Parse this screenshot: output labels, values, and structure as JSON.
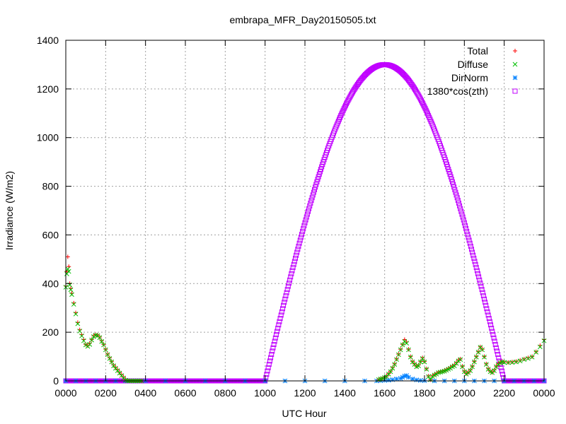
{
  "chart_data": {
    "type": "scatter",
    "title": "embrapa_MFR_Day20150505.txt",
    "xlabel": "UTC Hour",
    "ylabel": "Irradiance (W/m2)",
    "xlim": [
      0,
      24
    ],
    "ylim": [
      0,
      1400
    ],
    "grid": true,
    "legend_position": "top-right",
    "x_ticks": [
      {
        "v": 0,
        "label": "0000"
      },
      {
        "v": 2,
        "label": "0200"
      },
      {
        "v": 4,
        "label": "0400"
      },
      {
        "v": 6,
        "label": "0600"
      },
      {
        "v": 8,
        "label": "0800"
      },
      {
        "v": 10,
        "label": "1000"
      },
      {
        "v": 12,
        "label": "1200"
      },
      {
        "v": 14,
        "label": "1400"
      },
      {
        "v": 16,
        "label": "1600"
      },
      {
        "v": 18,
        "label": "1800"
      },
      {
        "v": 20,
        "label": "2000"
      },
      {
        "v": 22,
        "label": "2200"
      },
      {
        "v": 24,
        "label": "0000"
      }
    ],
    "y_ticks": [
      {
        "v": 0,
        "label": "0"
      },
      {
        "v": 200,
        "label": "200"
      },
      {
        "v": 400,
        "label": "400"
      },
      {
        "v": 600,
        "label": "600"
      },
      {
        "v": 800,
        "label": "800"
      },
      {
        "v": 1000,
        "label": "1000"
      },
      {
        "v": 1200,
        "label": "1200"
      },
      {
        "v": 1400,
        "label": "1400"
      }
    ],
    "series": [
      {
        "name": "Total",
        "marker": "plus",
        "color": "#ff0000",
        "x": [
          0,
          0.05,
          0.1,
          0.15,
          0.2,
          0.25,
          0.3,
          0.4,
          0.5,
          0.6,
          0.7,
          0.8,
          0.9,
          1.0,
          1.1,
          1.2,
          1.3,
          1.4,
          1.5,
          1.6,
          1.7,
          1.8,
          1.9,
          2.0,
          2.1,
          2.2,
          2.3,
          2.4,
          2.5,
          2.6,
          2.7,
          2.8,
          2.9,
          3.0,
          3.1,
          3.2,
          3.3,
          3.4,
          3.5,
          3.6,
          3.7,
          3.8,
          15.7,
          15.8,
          15.9,
          16.0,
          16.1,
          16.2,
          16.3,
          16.4,
          16.5,
          16.6,
          16.7,
          16.8,
          16.9,
          17.0,
          17.1,
          17.2,
          17.3,
          17.4,
          17.5,
          17.6,
          17.7,
          17.8,
          17.9,
          18.0,
          18.1,
          18.2,
          18.3,
          18.4,
          18.5,
          18.6,
          18.7,
          18.8,
          18.9,
          19.0,
          19.1,
          19.2,
          19.3,
          19.4,
          19.5,
          19.6,
          19.7,
          19.8,
          19.9,
          20.0,
          20.1,
          20.2,
          20.3,
          20.4,
          20.5,
          20.6,
          20.7,
          20.8,
          20.9,
          21.0,
          21.1,
          21.2,
          21.3,
          21.4,
          21.5,
          21.6,
          21.7,
          21.8,
          21.9,
          22.0,
          22.2,
          22.4,
          22.6,
          22.8,
          23.0,
          23.2,
          23.4,
          23.6,
          23.8,
          24.0
        ],
        "y": [
          390,
          450,
          510,
          470,
          400,
          380,
          360,
          320,
          280,
          240,
          210,
          190,
          170,
          150,
          145,
          155,
          170,
          185,
          190,
          188,
          180,
          165,
          150,
          130,
          110,
          95,
          80,
          65,
          55,
          45,
          35,
          25,
          15,
          5,
          0,
          0,
          0,
          0,
          0,
          0,
          0,
          0,
          5,
          8,
          10,
          15,
          20,
          30,
          40,
          55,
          70,
          90,
          110,
          130,
          150,
          170,
          160,
          130,
          100,
          80,
          70,
          60,
          65,
          80,
          95,
          80,
          50,
          20,
          5,
          20,
          25,
          30,
          35,
          38,
          40,
          42,
          45,
          50,
          55,
          60,
          65,
          75,
          85,
          90,
          60,
          40,
          30,
          35,
          45,
          60,
          80,
          100,
          120,
          140,
          130,
          100,
          70,
          50,
          40,
          35,
          45,
          60,
          70,
          75,
          80,
          78,
          76,
          78,
          80,
          85,
          90,
          95,
          100,
          120,
          145,
          170
        ]
      },
      {
        "name": "Diffuse",
        "marker": "cross",
        "color": "#00c000",
        "x": [
          0,
          0.05,
          0.1,
          0.15,
          0.2,
          0.25,
          0.3,
          0.4,
          0.5,
          0.6,
          0.7,
          0.8,
          0.9,
          1.0,
          1.1,
          1.2,
          1.3,
          1.4,
          1.5,
          1.6,
          1.7,
          1.8,
          1.9,
          2.0,
          2.1,
          2.2,
          2.3,
          2.4,
          2.5,
          2.6,
          2.7,
          2.8,
          2.9,
          3.0,
          3.1,
          3.2,
          3.3,
          3.4,
          3.5,
          3.6,
          3.7,
          3.8,
          15.7,
          15.8,
          15.9,
          16.0,
          16.1,
          16.2,
          16.3,
          16.4,
          16.5,
          16.6,
          16.7,
          16.8,
          16.9,
          17.0,
          17.1,
          17.2,
          17.3,
          17.4,
          17.5,
          17.6,
          17.7,
          17.8,
          17.9,
          18.0,
          18.1,
          18.2,
          18.3,
          18.4,
          18.5,
          18.6,
          18.7,
          18.8,
          18.9,
          19.0,
          19.1,
          19.2,
          19.3,
          19.4,
          19.5,
          19.6,
          19.7,
          19.8,
          19.9,
          20.0,
          20.1,
          20.2,
          20.3,
          20.4,
          20.5,
          20.6,
          20.7,
          20.8,
          20.9,
          21.0,
          21.1,
          21.2,
          21.3,
          21.4,
          21.5,
          21.6,
          21.7,
          21.8,
          21.9,
          22.0,
          22.2,
          22.4,
          22.6,
          22.8,
          23.0,
          23.2,
          23.4,
          23.6,
          23.8,
          24.0
        ],
        "y": [
          385,
          440,
          460,
          450,
          395,
          375,
          355,
          315,
          275,
          235,
          205,
          185,
          165,
          148,
          142,
          150,
          168,
          182,
          188,
          186,
          178,
          162,
          148,
          128,
          108,
          92,
          78,
          62,
          52,
          42,
          32,
          22,
          12,
          3,
          0,
          0,
          0,
          0,
          0,
          0,
          0,
          0,
          5,
          8,
          10,
          14,
          18,
          28,
          38,
          52,
          68,
          88,
          108,
          128,
          148,
          162,
          155,
          128,
          98,
          78,
          68,
          58,
          62,
          78,
          92,
          78,
          48,
          18,
          5,
          18,
          24,
          28,
          34,
          36,
          38,
          40,
          44,
          48,
          52,
          58,
          62,
          72,
          82,
          88,
          58,
          38,
          28,
          34,
          42,
          58,
          78,
          98,
          118,
          138,
          128,
          98,
          68,
          48,
          38,
          34,
          42,
          58,
          68,
          74,
          78,
          76,
          75,
          76,
          78,
          82,
          88,
          92,
          98,
          118,
          140,
          165
        ]
      },
      {
        "name": "DirNorm",
        "marker": "star",
        "color": "#0080ff",
        "x": [
          0,
          0.5,
          1,
          1.5,
          2,
          2.5,
          3,
          3.5,
          4,
          5,
          6,
          7,
          8,
          9,
          10,
          11,
          12,
          13,
          14,
          15,
          15.6,
          15.8,
          16.0,
          16.2,
          16.4,
          16.6,
          16.8,
          16.9,
          17.0,
          17.1,
          17.2,
          17.4,
          17.6,
          17.8,
          18.0,
          18.5,
          19.0,
          19.5,
          20.0,
          20.5,
          21.0,
          21.5,
          22.0,
          22.5,
          23.0,
          23.5,
          24.0
        ],
        "y": [
          0,
          0,
          0,
          0,
          0,
          0,
          0,
          0,
          0,
          0,
          0,
          0,
          0,
          0,
          0,
          0,
          0,
          0,
          0,
          0,
          0,
          1,
          2,
          3,
          5,
          8,
          10,
          15,
          20,
          22,
          15,
          8,
          4,
          2,
          1,
          0,
          0,
          0,
          0,
          0,
          0,
          0,
          0,
          0,
          0,
          0,
          0
        ]
      },
      {
        "name": "1380*cos(zth)",
        "marker": "square",
        "color": "#c000ff",
        "formula": {
          "rise": 10.0,
          "set": 22.0,
          "peak_x": 16.0,
          "peak_y": 1300
        }
      }
    ]
  }
}
